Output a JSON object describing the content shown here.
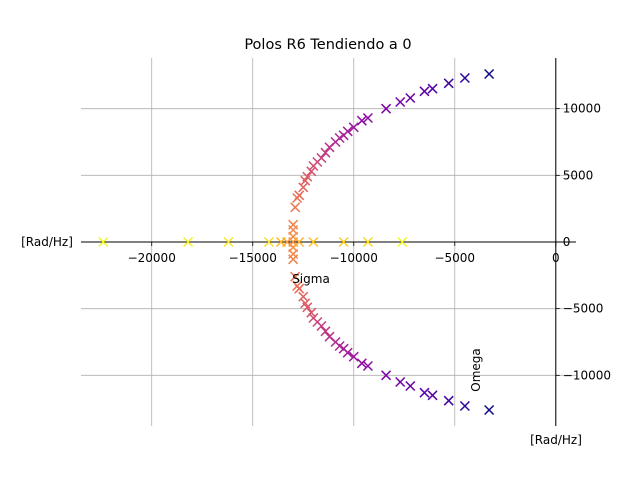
{
  "chart_data": {
    "type": "scatter",
    "title": "Polos R6 Tendiendo a 0",
    "xlabel": "Sigma",
    "ylabel": "Omega",
    "x_unit_label": "[Rad/Hz]",
    "y_unit_label": "[Rad/Hz]",
    "xlim": [
      -23500,
      1000
    ],
    "ylim": [
      -13800,
      13800
    ],
    "xticks": [
      {
        "value": -20000,
        "label": "−20000"
      },
      {
        "value": -15000,
        "label": "−15000"
      },
      {
        "value": -10000,
        "label": "−10000"
      },
      {
        "value": -5000,
        "label": "−5000"
      },
      {
        "value": 0,
        "label": "0"
      }
    ],
    "yticks": [
      {
        "value": -10000,
        "label": "−10000"
      },
      {
        "value": -5000,
        "label": "−5000"
      },
      {
        "value": 0,
        "label": "0"
      },
      {
        "value": 5000,
        "label": "5000"
      },
      {
        "value": 10000,
        "label": "10000"
      }
    ],
    "grid": true,
    "marker": "x",
    "colormap": "plasma",
    "points": [
      {
        "x": -3300,
        "y": 12600,
        "color": "#0d0887"
      },
      {
        "x": -4500,
        "y": 12300,
        "color": "#2c0594"
      },
      {
        "x": -5300,
        "y": 11900,
        "color": "#41049d"
      },
      {
        "x": -6100,
        "y": 11500,
        "color": "#5302a3"
      },
      {
        "x": -6500,
        "y": 11300,
        "color": "#5c01a6"
      },
      {
        "x": -7200,
        "y": 10800,
        "color": "#6a00a8"
      },
      {
        "x": -7700,
        "y": 10500,
        "color": "#7201a8"
      },
      {
        "x": -8400,
        "y": 10000,
        "color": "#7e03a8"
      },
      {
        "x": -9300,
        "y": 9300,
        "color": "#8b0aa5"
      },
      {
        "x": -9600,
        "y": 9100,
        "color": "#900da4"
      },
      {
        "x": -10000,
        "y": 8600,
        "color": "#9c179e"
      },
      {
        "x": -10300,
        "y": 8300,
        "color": "#a21d9a"
      },
      {
        "x": -10500,
        "y": 8000,
        "color": "#a82296"
      },
      {
        "x": -10700,
        "y": 7800,
        "color": "#ae2892"
      },
      {
        "x": -10900,
        "y": 7500,
        "color": "#b12a90"
      },
      {
        "x": -11200,
        "y": 7100,
        "color": "#b93289"
      },
      {
        "x": -11400,
        "y": 6700,
        "color": "#bf3984"
      },
      {
        "x": -11600,
        "y": 6300,
        "color": "#c43e7f"
      },
      {
        "x": -11800,
        "y": 6000,
        "color": "#cc4778"
      },
      {
        "x": -12000,
        "y": 5700,
        "color": "#d14e72"
      },
      {
        "x": -12100,
        "y": 5300,
        "color": "#d5546e"
      },
      {
        "x": -12300,
        "y": 4900,
        "color": "#db5c68"
      },
      {
        "x": -12400,
        "y": 4600,
        "color": "#de6164"
      },
      {
        "x": -12500,
        "y": 4100,
        "color": "#e16462"
      },
      {
        "x": -12700,
        "y": 3500,
        "color": "#e66c5c"
      },
      {
        "x": -12800,
        "y": 3300,
        "color": "#e97158"
      },
      {
        "x": -12900,
        "y": 2600,
        "color": "#ed7953"
      },
      {
        "x": -13000,
        "y": 1300,
        "color": "#f2844b"
      },
      {
        "x": -13000,
        "y": 900,
        "color": "#f48849"
      },
      {
        "x": -13000,
        "y": 400,
        "color": "#f68f44"
      },
      {
        "x": -13000,
        "y": 0,
        "color": "#f89540"
      },
      {
        "x": -13300,
        "y": 0,
        "color": "#fa9b3d"
      },
      {
        "x": -13000,
        "y": -400,
        "color": "#f68f44"
      },
      {
        "x": -13000,
        "y": -900,
        "color": "#f48849"
      },
      {
        "x": -13000,
        "y": -1300,
        "color": "#f2844b"
      },
      {
        "x": -12900,
        "y": -2600,
        "color": "#ed7953"
      },
      {
        "x": -12800,
        "y": -3300,
        "color": "#e97158"
      },
      {
        "x": -12700,
        "y": -3500,
        "color": "#e66c5c"
      },
      {
        "x": -12500,
        "y": -4100,
        "color": "#e16462"
      },
      {
        "x": -12400,
        "y": -4600,
        "color": "#de6164"
      },
      {
        "x": -12300,
        "y": -4900,
        "color": "#db5c68"
      },
      {
        "x": -12100,
        "y": -5300,
        "color": "#d5546e"
      },
      {
        "x": -12000,
        "y": -5700,
        "color": "#d14e72"
      },
      {
        "x": -11800,
        "y": -6000,
        "color": "#cc4778"
      },
      {
        "x": -11600,
        "y": -6300,
        "color": "#c43e7f"
      },
      {
        "x": -11400,
        "y": -6700,
        "color": "#bf3984"
      },
      {
        "x": -11200,
        "y": -7100,
        "color": "#b93289"
      },
      {
        "x": -10900,
        "y": -7500,
        "color": "#b12a90"
      },
      {
        "x": -10700,
        "y": -7800,
        "color": "#ae2892"
      },
      {
        "x": -10500,
        "y": -8000,
        "color": "#a82296"
      },
      {
        "x": -10300,
        "y": -8300,
        "color": "#a21d9a"
      },
      {
        "x": -10000,
        "y": -8600,
        "color": "#9c179e"
      },
      {
        "x": -9600,
        "y": -9100,
        "color": "#900da4"
      },
      {
        "x": -9300,
        "y": -9300,
        "color": "#8b0aa5"
      },
      {
        "x": -8400,
        "y": -10000,
        "color": "#7e03a8"
      },
      {
        "x": -7700,
        "y": -10500,
        "color": "#7201a8"
      },
      {
        "x": -7200,
        "y": -10800,
        "color": "#6a00a8"
      },
      {
        "x": -6500,
        "y": -11300,
        "color": "#5c01a6"
      },
      {
        "x": -6100,
        "y": -11500,
        "color": "#5302a3"
      },
      {
        "x": -5300,
        "y": -11900,
        "color": "#41049d"
      },
      {
        "x": -4500,
        "y": -12300,
        "color": "#2c0594"
      },
      {
        "x": -3300,
        "y": -12600,
        "color": "#0d0887"
      },
      {
        "x": -22400,
        "y": 0,
        "color": "#f0f921"
      },
      {
        "x": -18200,
        "y": 0,
        "color": "#f3ee27"
      },
      {
        "x": -16200,
        "y": 0,
        "color": "#f6e626"
      },
      {
        "x": -14200,
        "y": 0,
        "color": "#f8df25"
      },
      {
        "x": -13600,
        "y": 0,
        "color": "#fbb91f"
      },
      {
        "x": -12700,
        "y": 0,
        "color": "#fdb42f"
      },
      {
        "x": -12000,
        "y": 0,
        "color": "#fdc328"
      },
      {
        "x": -10500,
        "y": 0,
        "color": "#fccd25"
      },
      {
        "x": -9300,
        "y": 0,
        "color": "#f9dc24"
      },
      {
        "x": -7600,
        "y": 0,
        "color": "#f0f921"
      }
    ]
  }
}
